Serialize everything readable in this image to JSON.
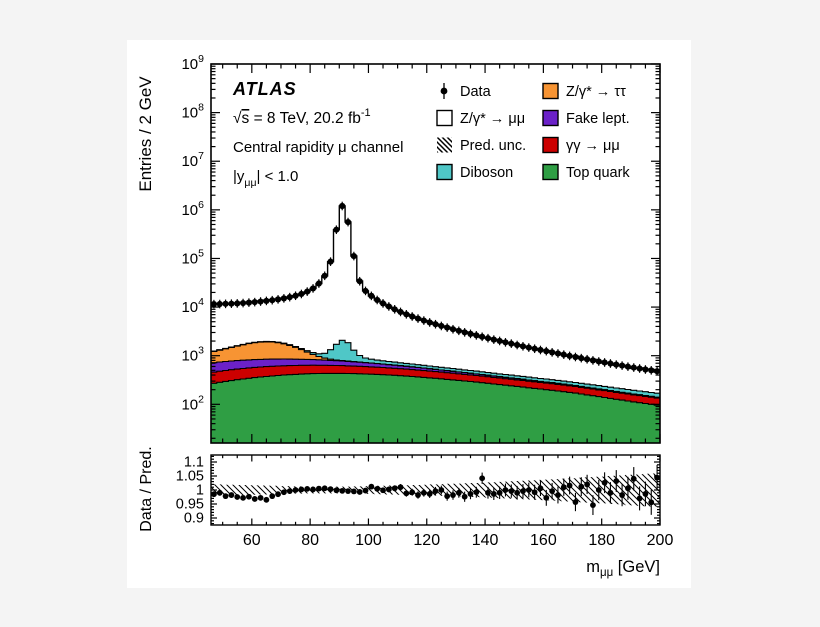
{
  "figure": {
    "background": "#f4f4f4",
    "panel_background": "#ffffff",
    "frame_color": "#000000",
    "marker_color": "#000000"
  },
  "labels": {
    "atlas": "ATLAS",
    "sqrt_s": {
      "radical": "√",
      "radicand": "s",
      "rest": " = 8 TeV, 20.2 fb",
      "sup": "-1"
    },
    "channel": "Central rapidity μ channel",
    "rapidity": {
      "pre": "|y",
      "sub": "μμ",
      "post": "| < 1.0"
    },
    "xlabel": {
      "pre": "m",
      "sub": "μμ",
      "post": " [GeV]"
    }
  },
  "legend": {
    "items": [
      {
        "label": "Data",
        "type": "marker"
      },
      {
        "label": "Z/γ* → μμ",
        "type": "box",
        "fill": "#ffffff"
      },
      {
        "label": "Pred. unc.",
        "type": "hatch"
      },
      {
        "label": "Diboson",
        "type": "box",
        "fill": "#4fc7c7"
      },
      {
        "label": "Z/γ* → ττ",
        "type": "box",
        "fill": "#f79433"
      },
      {
        "label": "Fake lept.",
        "type": "box",
        "fill": "#6b21c8"
      },
      {
        "label": "γγ → μμ",
        "type": "box",
        "fill": "#cc0000"
      },
      {
        "label": "Top quark",
        "type": "box",
        "fill": "#2f9e44"
      }
    ]
  },
  "chart_data": [
    {
      "id": "mass-spectrum",
      "type": "histogram-stacked",
      "yscale": "log",
      "ylabel": "Entries / 2 GeV",
      "xlim": [
        46,
        200
      ],
      "ylim": [
        16,
        1000000000
      ],
      "yticks_decades": [
        2,
        3,
        4,
        5,
        6,
        7,
        8,
        9
      ],
      "xticks": [
        60,
        80,
        100,
        120,
        140,
        160,
        180,
        200
      ],
      "x_minor_step": 5,
      "x_start": 46,
      "bin_width": 2,
      "series": [
        {
          "name": "Top quark",
          "color": "#2f9e44",
          "values": [
            270,
            283,
            296,
            308,
            320,
            332,
            343,
            354,
            364,
            374,
            383,
            392,
            400,
            407,
            413,
            419,
            424,
            428,
            430,
            432,
            433,
            433,
            432,
            430,
            428,
            425,
            421,
            417,
            412,
            407,
            401,
            395,
            388,
            381,
            374,
            366,
            358,
            350,
            342,
            334,
            326,
            318,
            310,
            302,
            294,
            286,
            278,
            270,
            262,
            254,
            247,
            240,
            233,
            226,
            219,
            212,
            206,
            200,
            194,
            188,
            182,
            176,
            170,
            163,
            156,
            150,
            144,
            138,
            132,
            127,
            122,
            117,
            112,
            108,
            104,
            100,
            96
          ]
        },
        {
          "name": "γγ → μμ",
          "color": "#cc0000",
          "values": [
            190,
            196,
            201,
            206,
            210,
            214,
            217,
            219,
            221,
            222,
            222,
            221,
            220,
            218,
            216,
            214,
            211,
            208,
            205,
            202,
            199,
            195,
            192,
            188,
            184,
            180,
            176,
            172,
            168,
            164,
            160,
            156,
            152,
            148,
            144,
            140,
            136,
            132,
            128,
            125,
            121,
            118,
            114,
            111,
            108,
            105,
            102,
            99,
            96,
            93,
            90,
            88,
            85,
            83,
            80,
            78,
            75,
            73,
            71,
            69,
            66,
            64,
            62,
            60,
            58,
            56,
            54,
            53,
            51,
            49,
            47,
            46,
            44,
            43,
            41,
            40,
            38
          ]
        },
        {
          "name": "Fake lept.",
          "color": "#6b21c8",
          "values": [
            258,
            261,
            263,
            264,
            264,
            263,
            261,
            258,
            254,
            250,
            245,
            239,
            233,
            226,
            219,
            211,
            203,
            195,
            187,
            178,
            170,
            161,
            153,
            145,
            137,
            129,
            121,
            114,
            107,
            100,
            93,
            87,
            81,
            76,
            70,
            65,
            61,
            56,
            52,
            48,
            45,
            41,
            38,
            35,
            33,
            30,
            28,
            26,
            24,
            22,
            21,
            19,
            18,
            17,
            15,
            14,
            13,
            13,
            12,
            11,
            10,
            10,
            9,
            9,
            8,
            8,
            7,
            7,
            6,
            6,
            6,
            5,
            5,
            5,
            5,
            4,
            4
          ]
        },
        {
          "name": "Z/γ* → ττ",
          "color": "#f79433",
          "values": [
            500,
            560,
            625,
            700,
            780,
            870,
            950,
            1020,
            1065,
            1080,
            1060,
            1000,
            905,
            780,
            640,
            490,
            350,
            230,
            140,
            80,
            45,
            25,
            15,
            10,
            8,
            6,
            5,
            5,
            4,
            4,
            3,
            3,
            3,
            3,
            3,
            2,
            2,
            2,
            2,
            2,
            2,
            2,
            2,
            2,
            2,
            2,
            2,
            2,
            2,
            2,
            2,
            2,
            2,
            2,
            2,
            2,
            2,
            2,
            2,
            2,
            2,
            2,
            2,
            2,
            2,
            2,
            2,
            2,
            2,
            2,
            2,
            2,
            2,
            2,
            2,
            2,
            2
          ]
        },
        {
          "name": "Diboson",
          "color": "#4fc7c7",
          "values": [
            25,
            26,
            27,
            28,
            29,
            31,
            32,
            34,
            36,
            38,
            41,
            44,
            48,
            53,
            59,
            67,
            78,
            95,
            130,
            230,
            480,
            900,
            1280,
            1080,
            540,
            270,
            175,
            140,
            120,
            110,
            102,
            96,
            91,
            87,
            83,
            80,
            77,
            74,
            71,
            69,
            67,
            65,
            63,
            61,
            59,
            58,
            56,
            55,
            53,
            52,
            51,
            49,
            48,
            47,
            46,
            45,
            44,
            43,
            42,
            41,
            40,
            39,
            38,
            37,
            37,
            36,
            35,
            34,
            34,
            33,
            32,
            32,
            31,
            30,
            30,
            29,
            29
          ]
        }
      ],
      "data_series": {
        "name": "Data",
        "color": "#000000",
        "values": [
          11500,
          11550,
          11650,
          11750,
          11900,
          12100,
          12350,
          12650,
          13000,
          13400,
          13850,
          14400,
          15100,
          16000,
          17100,
          18600,
          20800,
          24200,
          30500,
          44000,
          86000,
          390000,
          1200000,
          560000,
          112000,
          34000,
          21500,
          17000,
          14000,
          11900,
          10300,
          9000,
          7950,
          7100,
          6400,
          5800,
          5280,
          4830,
          4440,
          4090,
          3780,
          3500,
          3250,
          3020,
          2810,
          2620,
          2450,
          2290,
          2140,
          2010,
          1880,
          1770,
          1660,
          1560,
          1470,
          1390,
          1310,
          1240,
          1170,
          1110,
          1050,
          990,
          940,
          890,
          845,
          800,
          760,
          725,
          690,
          655,
          625,
          595,
          570,
          545,
          520,
          500,
          480
        ]
      }
    },
    {
      "id": "ratio",
      "type": "scatter",
      "ylabel": "Data / Pred.",
      "xlabel": "m_μμ [GeV]",
      "ylim": [
        0.875,
        1.125
      ],
      "yticks": [
        0.9,
        0.95,
        1,
        1.05,
        1.1
      ],
      "y_minor_step": 0.01,
      "values": [
        0.985,
        0.99,
        0.978,
        0.982,
        0.975,
        0.972,
        0.976,
        0.968,
        0.972,
        0.965,
        0.978,
        0.985,
        0.992,
        0.996,
        1.0,
        1.002,
        1.004,
        1.002,
        1.005,
        1.006,
        1.003,
        0.999,
        0.997,
        0.996,
        0.995,
        0.993,
        0.998,
        1.012,
        1.004,
        0.999,
        1.002,
        1.006,
        1.01,
        0.988,
        0.992,
        0.982,
        0.99,
        0.986,
        0.996,
        1.0,
        0.978,
        0.982,
        0.99,
        0.976,
        0.986,
        0.992,
        1.042,
        0.99,
        0.986,
        0.99,
        1.0,
        0.996,
        0.99,
        0.996,
        1.0,
        0.992,
        1.006,
        0.972,
        0.996,
        0.982,
        1.01,
        1.016,
        0.957,
        1.012,
        1.02,
        0.946,
        1.0,
        1.026,
        0.99,
        1.032,
        0.982,
        1.006,
        1.04,
        0.97,
        0.986,
        0.956,
        1.044
      ],
      "uncertainty_band_halfwidth": [
        0.02,
        0.02,
        0.019,
        0.019,
        0.018,
        0.018,
        0.017,
        0.017,
        0.016,
        0.016,
        0.015,
        0.015,
        0.014,
        0.014,
        0.013,
        0.013,
        0.012,
        0.012,
        0.012,
        0.012,
        0.012,
        0.012,
        0.012,
        0.012,
        0.013,
        0.013,
        0.014,
        0.014,
        0.015,
        0.015,
        0.016,
        0.016,
        0.017,
        0.017,
        0.018,
        0.018,
        0.019,
        0.02,
        0.02,
        0.021,
        0.022,
        0.022,
        0.023,
        0.024,
        0.025,
        0.025,
        0.026,
        0.027,
        0.028,
        0.029,
        0.03,
        0.031,
        0.032,
        0.033,
        0.034,
        0.035,
        0.036,
        0.037,
        0.038,
        0.039,
        0.04,
        0.041,
        0.042,
        0.044,
        0.045,
        0.046,
        0.047,
        0.048,
        0.05,
        0.051,
        0.052,
        0.054,
        0.055,
        0.056,
        0.058,
        0.059,
        0.06
      ]
    }
  ]
}
